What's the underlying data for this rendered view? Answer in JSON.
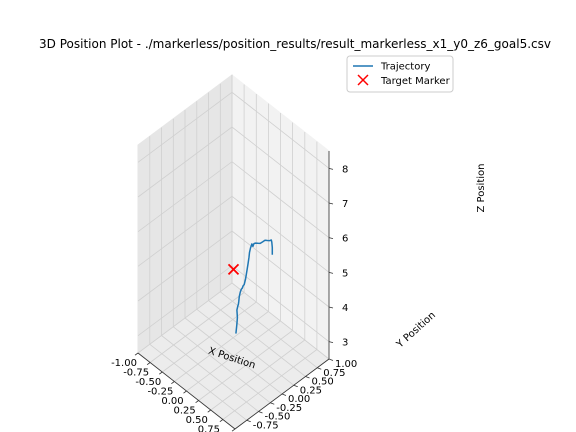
{
  "chart_data": {
    "type": "line-3d",
    "title": "3D Position Plot - ./markerless/position_results/result_markerless_x1_y0_z6_goal5.csv",
    "xlabel": "X Position",
    "ylabel": "Y Position",
    "zlabel": "Z Position",
    "xlim": [
      -1.0,
      1.0
    ],
    "ylim": [
      -1.0,
      1.0
    ],
    "zlim": [
      2.5,
      8.5
    ],
    "xticks": [
      "-1.00",
      "-0.75",
      "-0.50",
      "-0.25",
      "0.00",
      "0.25",
      "0.50",
      "0.75",
      "1.00"
    ],
    "yticks": [
      "-0.75",
      "-0.50",
      "-0.25",
      "0.00",
      "0.25",
      "0.50",
      "0.75",
      "1.00"
    ],
    "zticks": [
      "3",
      "4",
      "5",
      "6",
      "7",
      "8"
    ],
    "grid": true,
    "legend": {
      "placement": "top-right",
      "entries": [
        "Trajectory",
        "Target Marker"
      ]
    },
    "series": [
      {
        "name": "Trajectory",
        "color": "#1f77b4",
        "x": [
          0.05,
          0.06,
          0.07,
          0.08,
          0.07,
          0.09,
          0.1,
          0.11,
          0.12,
          0.14,
          0.16,
          0.18,
          0.2,
          0.22,
          0.25,
          0.28,
          0.3,
          0.32,
          0.33,
          0.35,
          0.38,
          0.4,
          0.42,
          0.45,
          0.5,
          0.55,
          0.6,
          0.65,
          0.7,
          0.75,
          0.78,
          0.79,
          0.8,
          0.8
        ],
        "y": [
          0.0,
          0.0,
          0.0,
          0.0,
          0.0,
          0.0,
          0.0,
          0.0,
          0.0,
          0.0,
          0.0,
          0.0,
          0.0,
          0.0,
          0.0,
          0.0,
          0.0,
          0.0,
          0.0,
          0.0,
          0.0,
          0.0,
          0.0,
          0.0,
          0.0,
          0.0,
          0.0,
          0.0,
          0.0,
          0.0,
          0.0,
          0.0,
          0.0,
          0.0
        ],
        "z": [
          3.2,
          3.35,
          3.5,
          3.7,
          3.9,
          4.05,
          4.1,
          4.2,
          4.35,
          4.5,
          4.6,
          4.65,
          4.75,
          4.8,
          5.0,
          5.3,
          5.5,
          5.7,
          5.85,
          6.0,
          6.15,
          6.1,
          6.2,
          6.25,
          6.3,
          6.35,
          6.45,
          6.55,
          6.6,
          6.65,
          6.7,
          6.65,
          6.5,
          6.3
        ]
      },
      {
        "name": "Target Marker",
        "color": "#ff0000",
        "marker": "x",
        "x": [
          0.0
        ],
        "y": [
          0.0
        ],
        "z": [
          5.0
        ]
      }
    ]
  }
}
